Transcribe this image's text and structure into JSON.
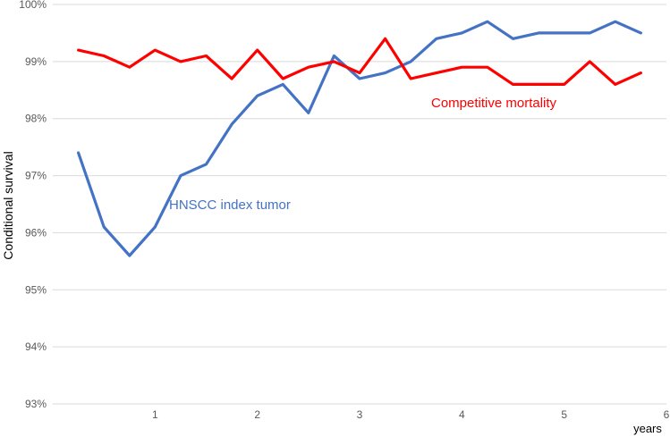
{
  "chart_data": {
    "type": "line",
    "title": "",
    "xlabel": "years",
    "ylabel": "Conditional survival",
    "xlim": [
      0,
      6
    ],
    "ylim": [
      93,
      100
    ],
    "x_ticks": [
      1,
      2,
      3,
      4,
      5,
      6
    ],
    "y_ticks": [
      93,
      94,
      95,
      96,
      97,
      98,
      99,
      100
    ],
    "y_tick_labels": [
      "93%",
      "94%",
      "95%",
      "96%",
      "97%",
      "98%",
      "99%",
      "100%"
    ],
    "grid": "horizontal",
    "x": [
      0.25,
      0.5,
      0.75,
      1.0,
      1.25,
      1.5,
      1.75,
      2.0,
      2.25,
      2.5,
      2.75,
      3.0,
      3.25,
      3.5,
      3.75,
      4.0,
      4.25,
      4.5,
      4.75,
      5.0,
      5.25,
      5.5,
      5.75
    ],
    "series": [
      {
        "name": "HNSCC index tumor",
        "color": "#4472C4",
        "values": [
          97.4,
          96.1,
          95.6,
          96.1,
          97.0,
          97.2,
          97.9,
          98.4,
          98.6,
          98.1,
          99.1,
          98.7,
          98.8,
          99.0,
          99.4,
          99.5,
          99.7,
          99.4,
          99.5,
          99.5,
          99.5,
          99.7,
          99.5
        ]
      },
      {
        "name": "Competitive mortality",
        "color": "#FF0000",
        "values": [
          99.2,
          99.1,
          98.9,
          99.2,
          99.0,
          99.1,
          98.7,
          99.2,
          98.7,
          98.9,
          99.0,
          98.8,
          99.4,
          98.7,
          98.8,
          98.9,
          98.9,
          98.6,
          98.6,
          98.6,
          99.0,
          98.6,
          98.8
        ]
      }
    ]
  }
}
